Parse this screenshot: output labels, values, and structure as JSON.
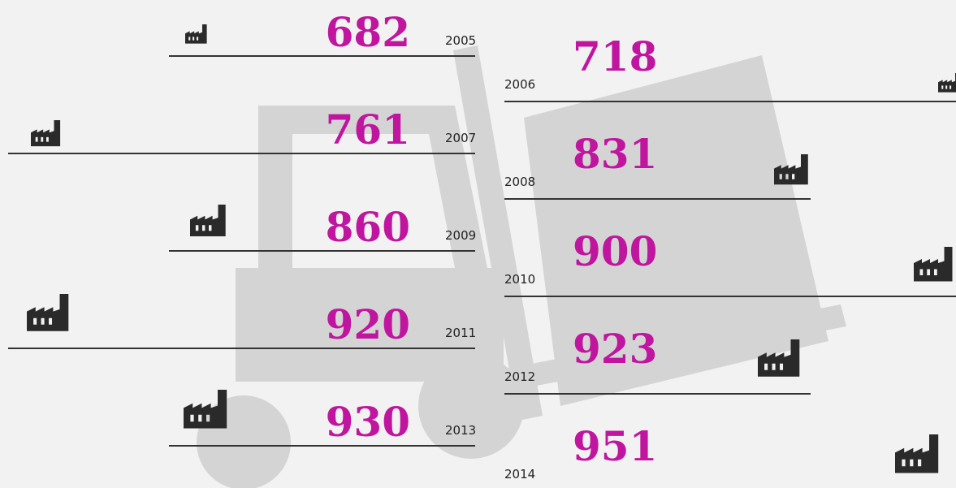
{
  "entries": [
    {
      "year": "2005",
      "value": 682
    },
    {
      "year": "2006",
      "value": 718
    },
    {
      "year": "2007",
      "value": 761
    },
    {
      "year": "2008",
      "value": 831
    },
    {
      "year": "2009",
      "value": 860
    },
    {
      "year": "2010",
      "value": 900
    },
    {
      "year": "2011",
      "value": 920
    },
    {
      "year": "2012",
      "value": 923
    },
    {
      "year": "2013",
      "value": 930
    },
    {
      "year": "2014",
      "value": 951
    }
  ]
}
